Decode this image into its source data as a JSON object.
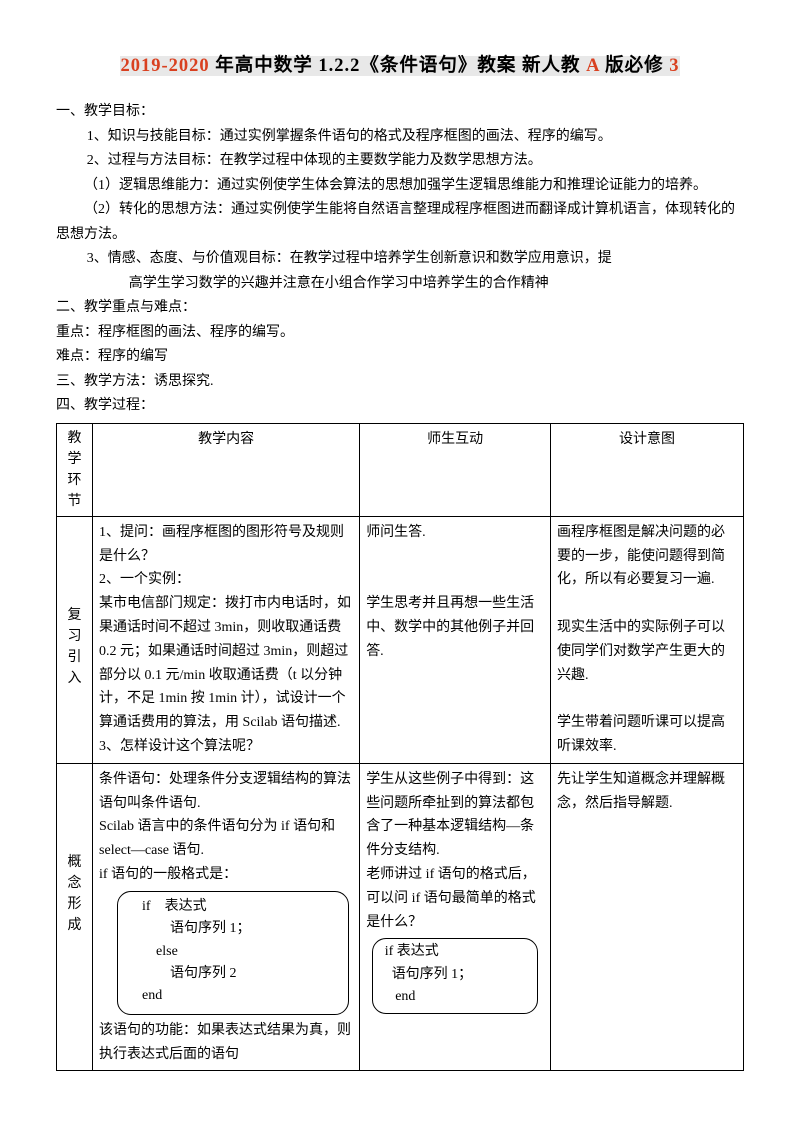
{
  "title": {
    "orange_left": "2019-2020",
    "black_mid": " 年高中数学 1.2.2《条件语句》教案 新人教 ",
    "orange_A": "A",
    "black_mid2": " 版必修 ",
    "orange_3": "3"
  },
  "sections": {
    "s1_head": "一、教学目标：",
    "s1_item1": "1、知识与技能目标：通过实例掌握条件语句的格式及程序框图的画法、程序的编写。",
    "s1_item2": "2、过程与方法目标：在教学过程中体现的主要数学能力及数学思想方法。",
    "s1_sub1": "（1）逻辑思维能力：通过实例使学生体会算法的思想加强学生逻辑思维能力和推理论证能力的培养。",
    "s1_sub2": "（2）转化的思想方法：通过实例使学生能将自然语言整理成程序框图进而翻译成计算机语言，体现转化的思想方法。",
    "s1_item3a": "3、情感、态度、与价值观目标：在教学过程中培养学生创新意识和数学应用意识，提",
    "s1_item3b": "高学生学习数学的兴趣并注意在小组合作学习中培养学生的合作精神",
    "s2_head": "二、教学重点与难点：",
    "s2_l1": "重点：程序框图的画法、程序的编写。",
    "s2_l2": "难点：程序的编写",
    "s3_head": "三、教学方法：诱思探究.",
    "s4_head": "四、教学过程："
  },
  "table": {
    "headers": {
      "phase": "教学环节",
      "content": "教学内容",
      "interact": "师生互动",
      "intent": "设计意图"
    },
    "row1": {
      "phase": [
        "复",
        "习",
        "引",
        "入"
      ],
      "content": "1、提问：画程序框图的图形符号及规则是什么？\n2、一个实例：\n某市电信部门规定：拨打市内电话时，如果通话时间不超过 3min，则收取通话费 0.2 元；如果通话时间超过 3min，则超过部分以 0.1 元/min 收取通话费（t 以分钟计，不足 1min 按 1min 计），试设计一个算通话费用的算法，用 Scilab 语句描述.\n3、怎样设计这个算法呢？",
      "interact_p1": "师问生答.",
      "interact_p2": "学生思考并且再想一些生活中、数学中的其他例子并回答.",
      "intent_p1": "画程序框图是解决问题的必要的一步，能使问题得到简化，所以有必要复习一遍.",
      "intent_p2": "现实生活中的实际例子可以使同学们对数学产生更大的兴趣.",
      "intent_p3": "学生带着问题听课可以提高听课效率."
    },
    "row2": {
      "phase": [
        "概",
        "念",
        "形",
        "成"
      ],
      "content_pre": "条件语句：处理条件分支逻辑结构的算法语句叫条件语句.\nScilab 语言中的条件语句分为 if 语句和 select—case 语句.\nif 语句的一般格式是：",
      "codebox1": [
        "    if    表达式",
        "            语句序列 1；",
        "        else",
        "            语句序列 2",
        "    end"
      ],
      "content_post": "该语句的功能：如果表达式结果为真，则执行表达式后面的语句",
      "interact_p1": "学生从这些例子中得到：这些问题所牵扯到的算法都包含了一种基本逻辑结构—条件分支结构.",
      "interact_p2": "老师讲过 if 语句的格式后，可以问 if 语句最简单的格式是什么？",
      "codebox2": [
        " if 表达式",
        "   语句序列 1；",
        "    end"
      ],
      "intent": "先让学生知道概念并理解概念，然后指导解题."
    }
  },
  "colors": {
    "highlight_bg": "#e8e8e8",
    "orange": "#d94020",
    "black": "#000000",
    "page_bg": "#ffffff"
  },
  "fonts": {
    "body_size_pt": 10.5,
    "title_size_pt": 14
  }
}
